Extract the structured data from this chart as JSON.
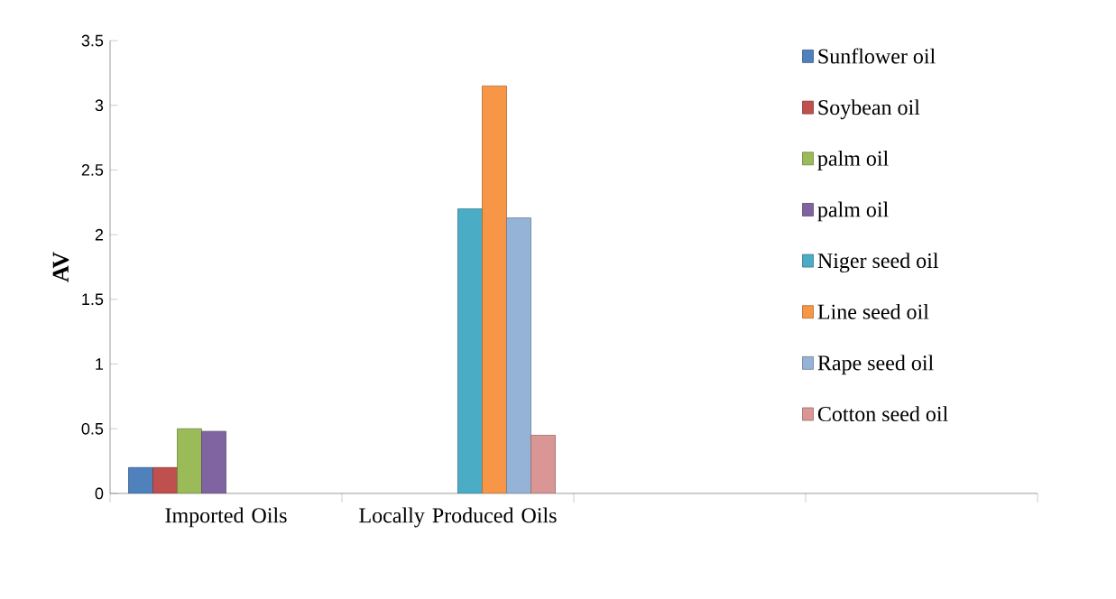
{
  "chart_data": {
    "type": "bar",
    "ylabel": "AV",
    "categories": [
      "Imported Oils",
      "Locally Produced Oils",
      null,
      null
    ],
    "ylim": [
      0,
      3.5
    ],
    "yticks": [
      0,
      0.5,
      1,
      1.5,
      2,
      2.5,
      3,
      3.5
    ],
    "legend": "top right",
    "grid": false,
    "series": [
      {
        "name": "Sunflower oil",
        "color": "#4f81bd",
        "values": [
          0.2,
          null,
          null,
          null
        ]
      },
      {
        "name": "Soybean oil",
        "color": "#c0504d",
        "values": [
          0.2,
          null,
          null,
          null
        ]
      },
      {
        "name": "palm oil",
        "color": "#9bbb59",
        "values": [
          0.5,
          null,
          null,
          null
        ]
      },
      {
        "name": "palm oil",
        "color": "#8064a2",
        "values": [
          0.48,
          null,
          null,
          null
        ]
      },
      {
        "name": "Niger seed oil",
        "color": "#4bacc6",
        "values": [
          null,
          2.2,
          null,
          null
        ]
      },
      {
        "name": "Line seed oil",
        "color": "#f79646",
        "values": [
          null,
          3.15,
          null,
          null
        ]
      },
      {
        "name": "Rape seed oil",
        "color": "#95b3d7",
        "values": [
          null,
          2.13,
          null,
          null
        ]
      },
      {
        "name": "Cotton seed oil",
        "color": "#d99694",
        "values": [
          null,
          0.45,
          null,
          null
        ]
      }
    ]
  }
}
